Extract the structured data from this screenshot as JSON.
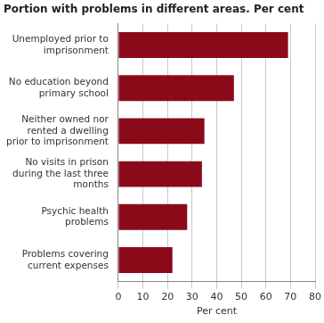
{
  "chart_data": {
    "type": "bar",
    "orientation": "horizontal",
    "title": "Portion with problems in different areas. Per cent",
    "x_label": "Per cent",
    "categories": [
      "Problems covering current expenses",
      "Psychic health problems",
      "No visits in prison during the last three months",
      "Neither owned nor rented a dwelling prior to imprisonment",
      "No education beyond primary school",
      "Unemployed prior to imprisonment"
    ],
    "values": [
      22,
      28,
      34,
      35,
      47,
      69
    ],
    "color": "#8b0a1a",
    "xlim": [
      0,
      80
    ],
    "xticks": [
      0,
      10,
      20,
      30,
      40,
      50,
      60,
      70,
      80
    ],
    "grid": true
  }
}
